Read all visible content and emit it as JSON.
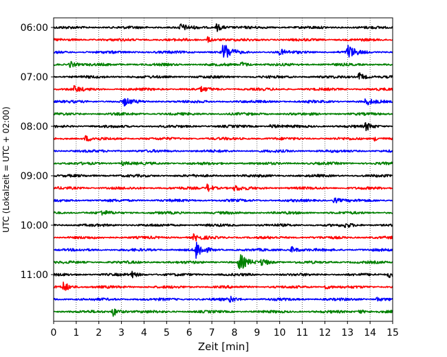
{
  "chart_data": {
    "type": "line",
    "title": "",
    "xlabel": "Zeit  [min]",
    "ylabel": "UTC (Lokalzeit = UTC + 02:00)",
    "xlim": [
      0,
      15
    ],
    "x_ticks": [
      "0",
      "1",
      "2",
      "3",
      "4",
      "5",
      "6",
      "7",
      "8",
      "9",
      "10",
      "11",
      "12",
      "13",
      "14",
      "15"
    ],
    "y_tick_labels": [
      "06:00",
      "07:00",
      "08:00",
      "09:00",
      "10:00",
      "11:00"
    ],
    "traces_per_hour": 4,
    "trace_minutes": 15,
    "grid": "vertical dotted at each minute",
    "trace_color_cycle": [
      "#000000",
      "#ff0000",
      "#0000ff",
      "#008000"
    ],
    "series": [
      {
        "start": "06:00",
        "color": "#000000",
        "events": [
          {
            "t": 5.6,
            "amp": 5
          },
          {
            "t": 7.2,
            "amp": 6
          }
        ]
      },
      {
        "start": "06:15",
        "color": "#ff0000",
        "events": [
          {
            "t": 6.8,
            "amp": 4
          }
        ]
      },
      {
        "start": "06:30",
        "color": "#0000ff",
        "events": [
          {
            "t": 7.5,
            "amp": 16
          },
          {
            "t": 13.0,
            "amp": 12
          },
          {
            "t": 10.0,
            "amp": 4
          }
        ]
      },
      {
        "start": "06:45",
        "color": "#008000",
        "events": [
          {
            "t": 0.7,
            "amp": 5
          },
          {
            "t": 8.3,
            "amp": 4
          }
        ]
      },
      {
        "start": "07:00",
        "color": "#000000",
        "events": [
          {
            "t": 13.5,
            "amp": 6
          }
        ]
      },
      {
        "start": "07:15",
        "color": "#ff0000",
        "events": [
          {
            "t": 0.9,
            "amp": 4
          },
          {
            "t": 6.5,
            "amp": 3
          }
        ]
      },
      {
        "start": "07:30",
        "color": "#0000ff",
        "events": [
          {
            "t": 3.1,
            "amp": 6
          },
          {
            "t": 13.8,
            "amp": 5
          }
        ]
      },
      {
        "start": "07:45",
        "color": "#008000",
        "events": []
      },
      {
        "start": "08:00",
        "color": "#000000",
        "events": [
          {
            "t": 9.6,
            "amp": 3
          },
          {
            "t": 13.8,
            "amp": 6
          }
        ]
      },
      {
        "start": "08:15",
        "color": "#ff0000",
        "events": [
          {
            "t": 1.4,
            "amp": 4
          },
          {
            "t": 14.2,
            "amp": 3
          }
        ]
      },
      {
        "start": "08:30",
        "color": "#0000ff",
        "events": []
      },
      {
        "start": "08:45",
        "color": "#008000",
        "events": [
          {
            "t": 3.0,
            "amp": 3
          }
        ]
      },
      {
        "start": "09:00",
        "color": "#000000",
        "events": []
      },
      {
        "start": "09:15",
        "color": "#ff0000",
        "events": [
          {
            "t": 6.8,
            "amp": 6
          },
          {
            "t": 8.0,
            "amp": 4
          }
        ]
      },
      {
        "start": "09:30",
        "color": "#0000ff",
        "events": [
          {
            "t": 12.4,
            "amp": 4
          }
        ]
      },
      {
        "start": "09:45",
        "color": "#008000",
        "events": [
          {
            "t": 2.1,
            "amp": 3
          }
        ]
      },
      {
        "start": "10:00",
        "color": "#000000",
        "events": [
          {
            "t": 12.9,
            "amp": 3
          }
        ]
      },
      {
        "start": "10:15",
        "color": "#ff0000",
        "events": [
          {
            "t": 6.2,
            "amp": 5
          }
        ]
      },
      {
        "start": "10:30",
        "color": "#0000ff",
        "events": [
          {
            "t": 6.3,
            "amp": 14
          },
          {
            "t": 10.5,
            "amp": 5
          }
        ]
      },
      {
        "start": "10:45",
        "color": "#008000",
        "events": [
          {
            "t": 8.2,
            "amp": 14
          },
          {
            "t": 9.2,
            "amp": 6
          }
        ]
      },
      {
        "start": "11:00",
        "color": "#000000",
        "events": [
          {
            "t": 3.4,
            "amp": 5
          },
          {
            "t": 14.8,
            "amp": 5
          }
        ]
      },
      {
        "start": "11:15",
        "color": "#ff0000",
        "events": [
          {
            "t": 0.4,
            "amp": 8
          },
          {
            "t": 12.0,
            "amp": 3
          }
        ]
      },
      {
        "start": "11:30",
        "color": "#0000ff",
        "events": [
          {
            "t": 7.8,
            "amp": 4
          },
          {
            "t": 14.3,
            "amp": 3
          }
        ]
      },
      {
        "start": "11:45",
        "color": "#008000",
        "events": [
          {
            "t": 2.6,
            "amp": 7
          },
          {
            "t": 13.5,
            "amp": 3
          }
        ]
      }
    ]
  }
}
